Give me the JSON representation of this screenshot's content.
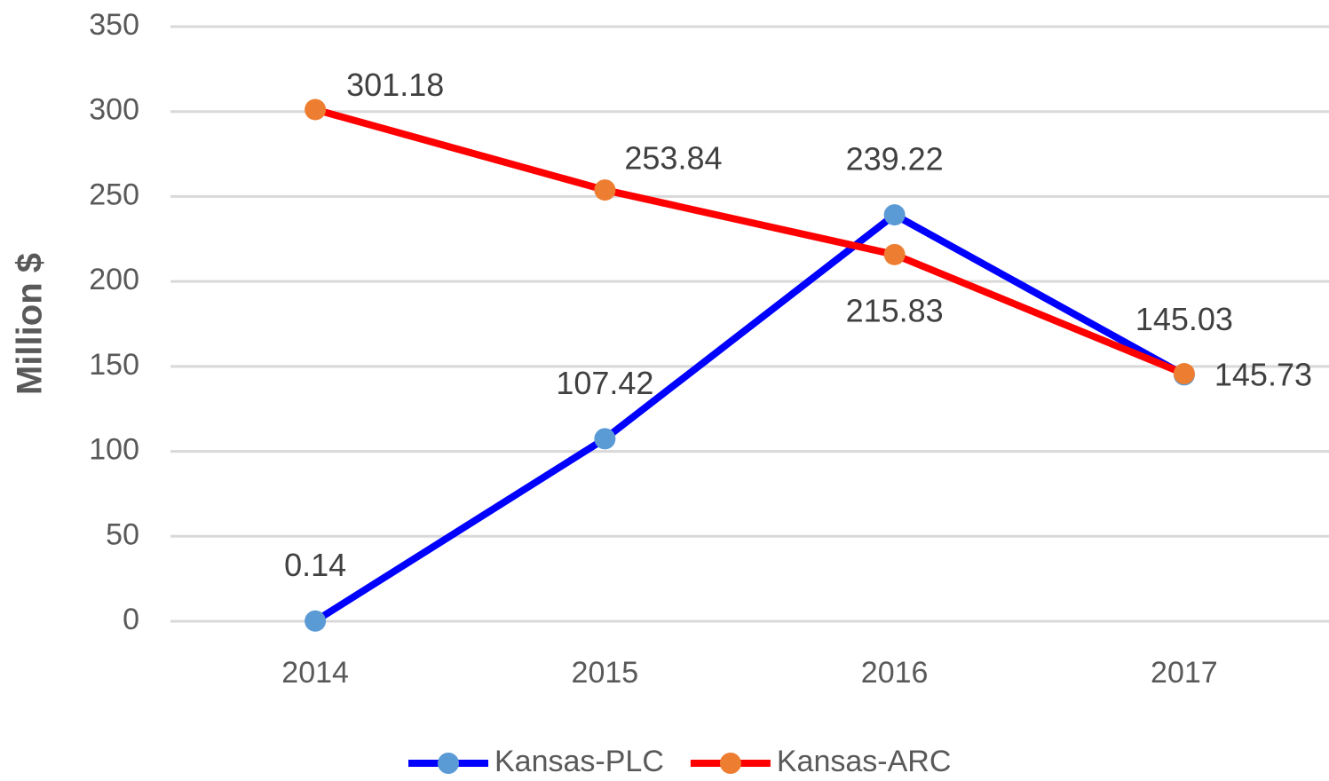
{
  "chart_data": {
    "type": "line",
    "y_label": "Million $",
    "categories": [
      "2014",
      "2015",
      "2016",
      "2017"
    ],
    "series": [
      {
        "name": "Kansas-PLC",
        "color": "#0000ff",
        "marker_color": "#5b9bd5",
        "values": [
          0.14,
          107.42,
          239.22,
          145.03
        ]
      },
      {
        "name": "Kansas-ARC",
        "color": "#ff0000",
        "marker_color": "#ed7d31",
        "values": [
          301.18,
          253.84,
          215.83,
          145.73
        ]
      }
    ],
    "ylim": [
      0,
      350
    ],
    "yticks": [
      0,
      50,
      100,
      150,
      200,
      250,
      300,
      350
    ],
    "grid": true,
    "legend": "bottom"
  }
}
